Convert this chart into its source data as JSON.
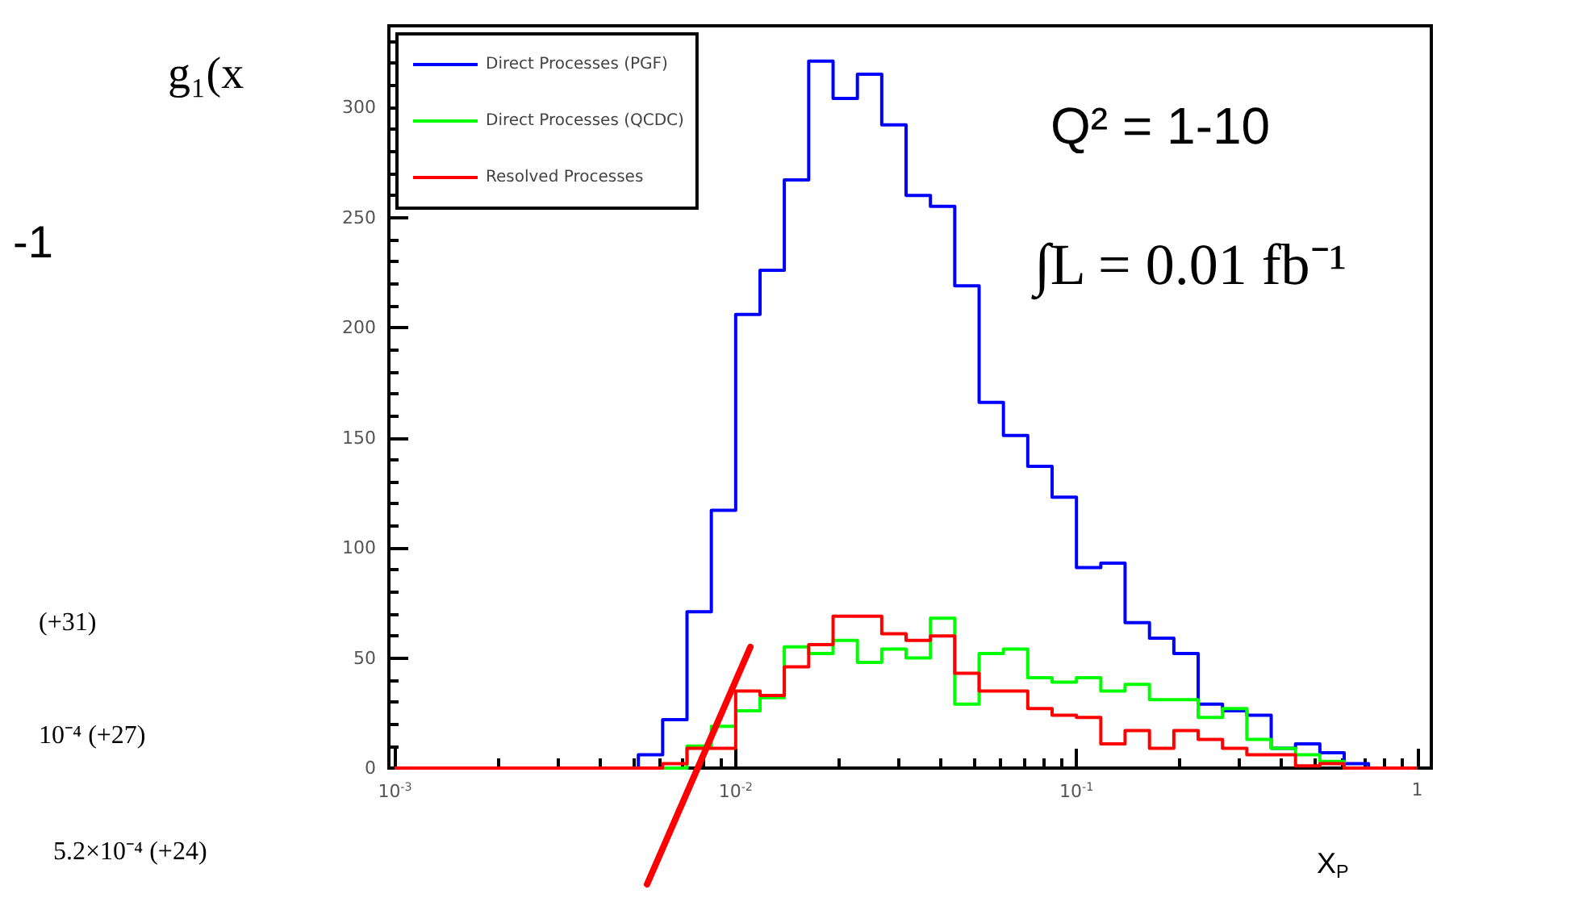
{
  "chart_data": {
    "type": "histogram",
    "bins": [
      0.001,
      0.001179,
      0.001389,
      0.001638,
      0.001931,
      0.002276,
      0.002683,
      0.003162,
      0.003728,
      0.004394,
      0.00518,
      0.006105,
      0.007197,
      0.008483,
      0.01,
      0.01179,
      0.01389,
      0.01638,
      0.01931,
      0.02276,
      0.02683,
      0.03162,
      0.03728,
      0.04394,
      0.0518,
      0.06105,
      0.07197,
      0.08483,
      0.1,
      0.1179,
      0.1389,
      0.1638,
      0.1931,
      0.2276,
      0.2683,
      0.3162,
      0.3728,
      0.4394,
      0.518,
      0.6105,
      0.7197,
      0.8483,
      1
    ],
    "series": [
      {
        "name": "Direct Processes (PGF)",
        "color": "#0000ff",
        "values": [
          0,
          0,
          0,
          0,
          0,
          0,
          0,
          0,
          0,
          0,
          6,
          22,
          71,
          117,
          206,
          226,
          267,
          321,
          304,
          315,
          292,
          260,
          255,
          219,
          166,
          151,
          137,
          123,
          91,
          93,
          66,
          59,
          52,
          29,
          26,
          24,
          9,
          11,
          7,
          2,
          0,
          0
        ]
      },
      {
        "name": "Direct Processes (QCDC)",
        "color": "#00ff00",
        "values": [
          0,
          0,
          0,
          0,
          0,
          0,
          0,
          0,
          0,
          0,
          0,
          0,
          10,
          19,
          26,
          32,
          55,
          52,
          58,
          48,
          54,
          50,
          68,
          29,
          52,
          54,
          41,
          39,
          41,
          35,
          38,
          31,
          31,
          23,
          27,
          13,
          9,
          6,
          3,
          0,
          0,
          0
        ]
      },
      {
        "name": "Resolved Processes",
        "color": "#ff0000",
        "values": [
          0,
          0,
          0,
          0,
          0,
          0,
          0,
          0,
          0,
          0,
          0,
          2,
          9,
          9,
          35,
          33,
          46,
          56,
          69,
          69,
          61,
          58,
          60,
          43,
          35,
          35,
          27,
          24,
          23,
          11,
          17,
          9,
          17,
          13,
          9,
          6,
          6,
          1,
          2,
          0,
          0,
          0
        ]
      }
    ],
    "log": "x",
    "xlim": [
      0.00096,
      1.1
    ],
    "xticks": [
      {
        "value": 0.001,
        "label": "10$^{-3}$"
      },
      {
        "value": 0.01,
        "label": "10$^{-2}$"
      },
      {
        "value": 0.1,
        "label": "10$^{-1}$"
      },
      1
    ],
    "ylim": [
      0,
      337
    ],
    "yticks": [
      0,
      50,
      100,
      150,
      200,
      250,
      300
    ],
    "xlabel": "X$_{P}$",
    "legend": "top left",
    "grid": false,
    "annotations": [
      "Q² = 1-10",
      "∫L = 0.01 fb⁻¹",
      "g₁(x",
      "-1",
      "(+31)",
      "10⁻⁴ (+27)",
      "5.2×10⁻⁴ (+24)"
    ]
  }
}
